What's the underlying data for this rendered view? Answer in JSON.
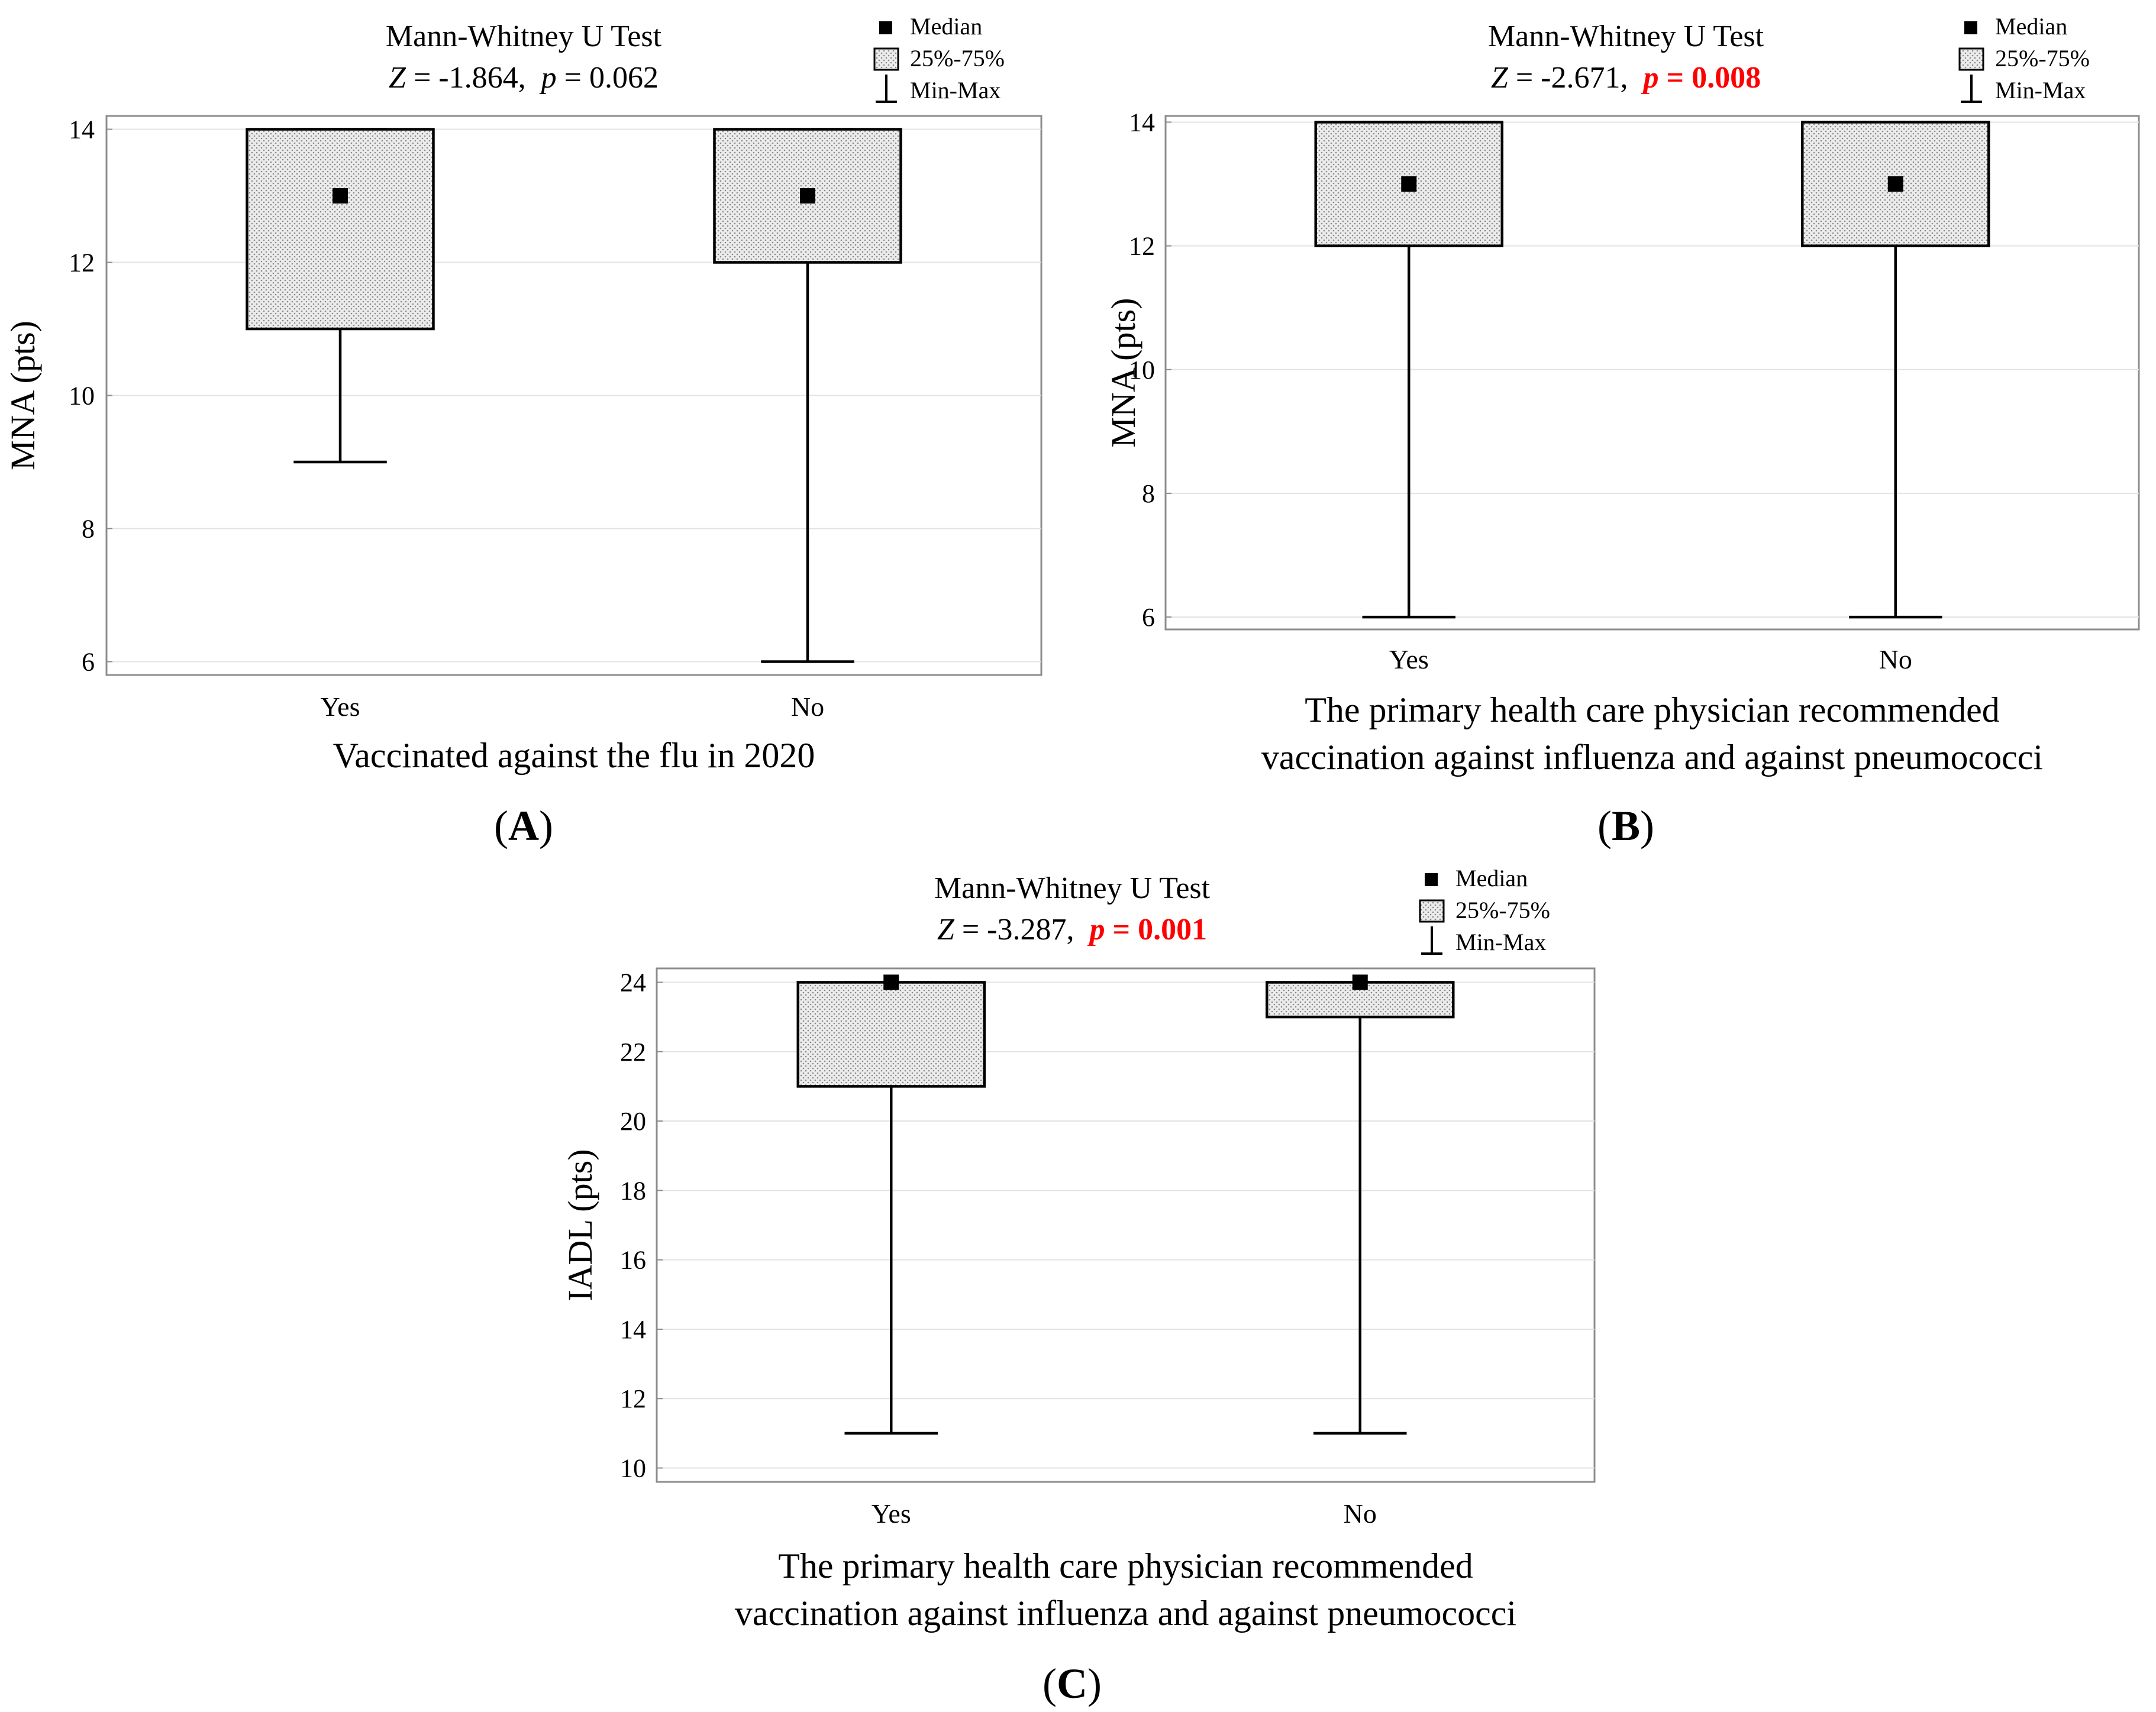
{
  "chart_data": [
    {
      "type": "box",
      "panel_label": "A",
      "title": "Mann-Whitney U Test",
      "stats": {
        "z_symbol": "Z",
        "z_text": " = -1.864,",
        "p_symbol": "p",
        "p_text": " = 0.062",
        "significant": false
      },
      "legend": {
        "median": "Median",
        "box": "25%-75%",
        "whisker": "Min-Max"
      },
      "ylabel": "MNA (pts)",
      "xlabel_lines": [
        "Vaccinated against the flu in 2020"
      ],
      "ylim": [
        5.8,
        14.2
      ],
      "yticks": [
        6,
        8,
        10,
        12,
        14
      ],
      "categories": [
        "Yes",
        "No"
      ],
      "boxes": [
        {
          "min": 9,
          "q1": 11,
          "median": 13,
          "q3": 14,
          "max": 14
        },
        {
          "min": 6,
          "q1": 12,
          "median": 13,
          "q3": 14,
          "max": 14
        }
      ],
      "grid": true
    },
    {
      "type": "box",
      "panel_label": "B",
      "title": "Mann-Whitney U Test",
      "stats": {
        "z_symbol": "Z",
        "z_text": " = -2.671,",
        "p_symbol": "p",
        "p_text": " = 0.008",
        "significant": true
      },
      "legend": {
        "median": "Median",
        "box": "25%-75%",
        "whisker": "Min-Max"
      },
      "ylabel": "MNA (pts)",
      "xlabel_lines": [
        "The primary health care physician recommended",
        "vaccination against influenza and against pneumococci"
      ],
      "ylim": [
        5.8,
        14.1
      ],
      "yticks": [
        6,
        8,
        10,
        12,
        14
      ],
      "categories": [
        "Yes",
        "No"
      ],
      "boxes": [
        {
          "min": 6,
          "q1": 12,
          "median": 13,
          "q3": 14,
          "max": 14
        },
        {
          "min": 6,
          "q1": 12,
          "median": 13,
          "q3": 14,
          "max": 14
        }
      ],
      "grid": true
    },
    {
      "type": "box",
      "panel_label": "C",
      "title": "Mann-Whitney U Test",
      "stats": {
        "z_symbol": "Z",
        "z_text": " = -3.287,",
        "p_symbol": "p",
        "p_text": " = 0.001",
        "significant": true
      },
      "legend": {
        "median": "Median",
        "box": "25%-75%",
        "whisker": "Min-Max"
      },
      "ylabel": "IADL (pts)",
      "xlabel_lines": [
        "The primary health care physician recommended",
        "vaccination against influenza and against pneumococci"
      ],
      "ylim": [
        9.6,
        24.4
      ],
      "yticks": [
        10,
        12,
        14,
        16,
        18,
        20,
        22,
        24
      ],
      "categories": [
        "Yes",
        "No"
      ],
      "boxes": [
        {
          "min": 11,
          "q1": 21,
          "median": 24,
          "q3": 24,
          "max": 24
        },
        {
          "min": 11,
          "q1": 23,
          "median": 24,
          "q3": 24,
          "max": 24
        }
      ],
      "grid": true
    }
  ]
}
